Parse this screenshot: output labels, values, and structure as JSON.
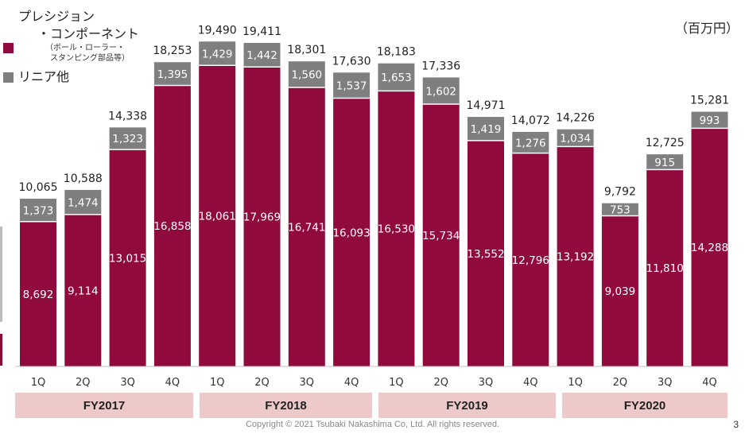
{
  "legend": {
    "precision_line1": "プレシジョン",
    "precision_line2": "・コンポーネント",
    "precision_sub1": "（ボール・ローラー・",
    "precision_sub2": "スタンピング部品等）",
    "linear": "リニア他"
  },
  "unit_label": "（百万円）",
  "fiscal_years": [
    "FY2017",
    "FY2018",
    "FY2019",
    "FY2020"
  ],
  "footer": {
    "copyright": "Copyright © 2021 Tsubaki Nakashima Co, Ltd. All rights reserved.",
    "page": "3"
  },
  "colors": {
    "precision": "#910a3e",
    "linear": "#7f7f7f",
    "fy_band": "#eec9c9"
  },
  "chart_data": {
    "type": "bar",
    "stacked": true,
    "categories": [
      "1Q",
      "2Q",
      "3Q",
      "4Q",
      "1Q",
      "2Q",
      "3Q",
      "4Q",
      "1Q",
      "2Q",
      "3Q",
      "4Q",
      "1Q",
      "2Q",
      "3Q",
      "4Q"
    ],
    "groups": [
      "FY2017",
      "FY2018",
      "FY2019",
      "FY2020"
    ],
    "series": [
      {
        "name": "プレシジョン・コンポーネント（ボール・ローラー・スタンピング部品等）",
        "values": [
          8692,
          9114,
          13015,
          16858,
          18061,
          17969,
          16741,
          16093,
          16530,
          15734,
          13552,
          12796,
          13192,
          9039,
          11810,
          14288
        ]
      },
      {
        "name": "リニア他",
        "values": [
          1373,
          1474,
          1323,
          1395,
          1429,
          1442,
          1560,
          1537,
          1653,
          1602,
          1419,
          1276,
          1034,
          753,
          915,
          993
        ]
      }
    ],
    "value_labels": {
      "precision": [
        "8,692",
        "9,114",
        "13,015",
        "16,858",
        "18,061",
        "17,969",
        "16,741",
        "16,093",
        "16,530",
        "15,734",
        "13,552",
        "12,796",
        "13,192",
        "9,039",
        "11,810",
        "14,288"
      ],
      "linear": [
        "1,373",
        "1,474",
        "1,323",
        "1,395",
        "1,429",
        "1,442",
        "1,560",
        "1,537",
        "1,653",
        "1,602",
        "1,419",
        "1,276",
        "1,034",
        "753",
        "915",
        "993"
      ],
      "total": [
        "10,065",
        "10,588",
        "14,338",
        "18,253",
        "19,490",
        "19,411",
        "18,301",
        "17,630",
        "18,183",
        "17,336",
        "14,971",
        "14,072",
        "14,226",
        "9,792",
        "12,725",
        "15,281"
      ]
    },
    "totals": [
      10065,
      10588,
      14338,
      18253,
      19490,
      19411,
      18301,
      17630,
      18183,
      17336,
      14971,
      14072,
      14226,
      9792,
      12725,
      15281
    ],
    "ylim": [
      0,
      20500
    ],
    "grid": false
  }
}
